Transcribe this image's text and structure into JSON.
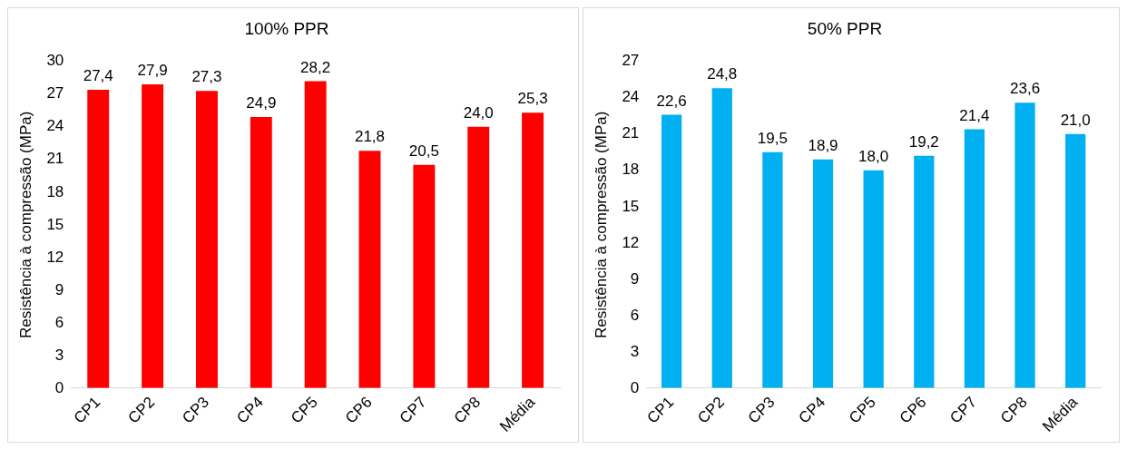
{
  "chart_data": [
    {
      "type": "bar",
      "title": "100% PPR",
      "ylabel": "Resistência à compressão (MPa)",
      "categories": [
        "CP1",
        "CP2",
        "CP3",
        "CP4",
        "CP5",
        "CP6",
        "CP7",
        "CP8",
        "Média"
      ],
      "values": [
        27.4,
        27.9,
        27.3,
        24.9,
        28.2,
        21.8,
        20.5,
        24.0,
        25.3
      ],
      "color": "#ff0000",
      "value_labels": [
        "27,4",
        "27,9",
        "27,3",
        "24,9",
        "28,2",
        "21,8",
        "20,5",
        "24,0",
        "25,3"
      ],
      "ylim": [
        0,
        30
      ],
      "yticks": [
        0,
        3,
        6,
        9,
        12,
        15,
        18,
        21,
        24,
        27,
        30
      ],
      "grid": false,
      "legend": false
    },
    {
      "type": "bar",
      "title": "50% PPR",
      "ylabel": "Resistência à compressão (MPa)",
      "categories": [
        "CP1",
        "CP2",
        "CP3",
        "CP4",
        "CP5",
        "CP6",
        "CP7",
        "CP8",
        "Média"
      ],
      "values": [
        22.6,
        24.8,
        19.5,
        18.9,
        18.0,
        19.2,
        21.4,
        23.6,
        21.0
      ],
      "color": "#00b0f0",
      "value_labels": [
        "22,6",
        "24,8",
        "19,5",
        "18,9",
        "18,0",
        "19,2",
        "21,4",
        "23,6",
        "21,0"
      ],
      "ylim": [
        0,
        27
      ],
      "yticks": [
        0,
        3,
        6,
        9,
        12,
        15,
        18,
        21,
        24,
        27
      ],
      "grid": false,
      "legend": false
    }
  ]
}
